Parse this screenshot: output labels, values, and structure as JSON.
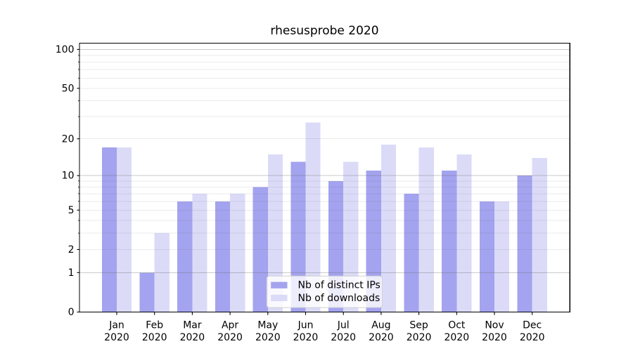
{
  "chart_data": {
    "type": "bar",
    "title": "rhesusprobe 2020",
    "categories": [
      "Jan",
      "Feb",
      "Mar",
      "Apr",
      "May",
      "Jun",
      "Jul",
      "Aug",
      "Sep",
      "Oct",
      "Nov",
      "Dec"
    ],
    "year": "2020",
    "series": [
      {
        "name": "Nb of distinct IPs",
        "color": "#a3a3ef",
        "values": [
          17,
          1,
          6,
          6,
          8,
          13,
          9,
          11,
          7,
          11,
          6,
          10
        ]
      },
      {
        "name": "Nb of downloads",
        "color": "#dbdbf8",
        "values": [
          17,
          3,
          7,
          7,
          15,
          27,
          13,
          18,
          17,
          15,
          6,
          14
        ]
      }
    ],
    "yscale": "log1p",
    "yticks": [
      0,
      1,
      2,
      5,
      10,
      20,
      50,
      100
    ],
    "yticks_minor": [
      3,
      4,
      6,
      7,
      8,
      9,
      30,
      40,
      60,
      70,
      80,
      90
    ],
    "major_grid_values": [
      1,
      10,
      100
    ],
    "ylim": [
      0,
      113
    ],
    "xlabel": "",
    "ylabel": "",
    "grid": "horizontal",
    "legend_position": "lower-center",
    "colors": {
      "major_grid": "rgba(102,102,102,0.35)",
      "minor_grid": "rgba(102,102,102,0.13)",
      "axis": "#000000",
      "legend_border": "#d0d0d0",
      "legend_bg": "rgba(255,255,255,0.8)"
    }
  }
}
